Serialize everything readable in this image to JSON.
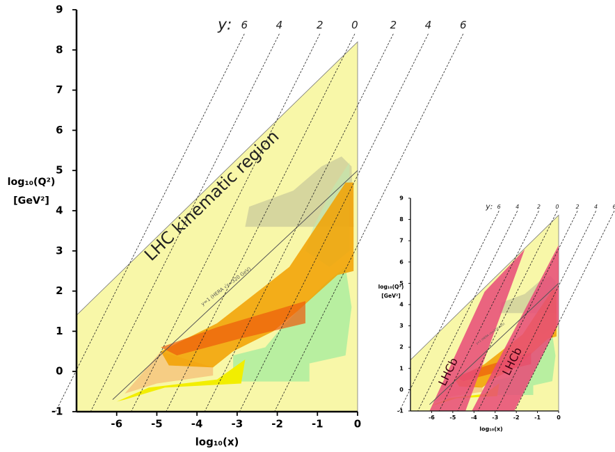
{
  "chart_data": [
    {
      "type": "region",
      "xlim": [
        -7,
        0
      ],
      "ylim": [
        -1,
        9
      ],
      "xticks": [
        -6,
        -5,
        -4,
        -3,
        -2,
        -1,
        0
      ],
      "yticks": [
        -1,
        0,
        1,
        2,
        3,
        4,
        5,
        6,
        7,
        8,
        9
      ],
      "xlabel": "log₁₀(x)",
      "ylabel": "log₁₀(Q²)",
      "ylabel_unit": "[GeV²]",
      "rapidity_prefix": "y:",
      "annotations": [
        "LHC kinematic region",
        "y=1 (HERA √s=320 GeV)"
      ],
      "regions": [
        {
          "color": "#f8f7a8",
          "opacity": 1,
          "x": [
            -7,
            0,
            0,
            -7
          ],
          "y": [
            1.4,
            8.2,
            -1,
            -1
          ]
        },
        {
          "color": "#c8c89a",
          "opacity": 0.7,
          "x": [
            -2.8,
            -2.7,
            -1.6,
            -0.9,
            -0.4,
            -0.15,
            -0.1,
            -2.8
          ],
          "y": [
            3.6,
            4.1,
            4.5,
            5.1,
            5.35,
            5.1,
            3.6,
            3.6
          ]
        },
        {
          "color": "#bfe8b0",
          "opacity": 0.6,
          "x": [
            -1.1,
            -0.6,
            -0.2,
            -0.2,
            -0.7,
            -1.3
          ],
          "y": [
            3.6,
            4.6,
            5.2,
            3.0,
            2.6,
            3.0
          ]
        },
        {
          "color": "#a8ec9e",
          "opacity": 0.8,
          "x": [
            -3.1,
            -3.1,
            -2.3,
            -1.8,
            -0.8,
            -0.3,
            -0.15,
            -0.3,
            -1.2,
            -1.2
          ],
          "y": [
            -0.25,
            0.4,
            0.6,
            1.2,
            2.2,
            2.6,
            1.6,
            0.4,
            0.2,
            -0.25
          ]
        },
        {
          "color": "#f5c27a",
          "opacity": 0.8,
          "x": [
            -5.8,
            -4.9,
            -3.6,
            -3.6,
            -5.0
          ],
          "y": [
            -0.55,
            0.5,
            0.1,
            -0.1,
            -0.3
          ]
        },
        {
          "color": "#f2ee00",
          "opacity": 1,
          "x": [
            -6.0,
            -5.2,
            -3.5,
            -2.8,
            -2.9,
            -4.8,
            -5.8
          ],
          "y": [
            -0.75,
            -0.4,
            -0.2,
            0.3,
            -0.3,
            -0.4,
            -0.7
          ]
        },
        {
          "color": "#f2a000",
          "opacity": 0.85,
          "x": [
            -4.9,
            -3.5,
            -1.7,
            -0.3,
            -0.1,
            -0.1,
            -0.5,
            -1.5,
            -2.1,
            -3.1,
            -3.6,
            -4.7
          ],
          "y": [
            0.5,
            1.2,
            2.6,
            4.7,
            4.7,
            2.5,
            2.4,
            1.5,
            1.0,
            0.5,
            0.1,
            0.15
          ]
        },
        {
          "color": "#ec5a0c",
          "opacity": 0.7,
          "x": [
            -4.9,
            -3.5,
            -1.3,
            -1.3,
            -3.0,
            -4.5
          ],
          "y": [
            0.6,
            1.1,
            1.75,
            1.2,
            0.8,
            0.4
          ]
        }
      ],
      "boundary": {
        "x": [
          -6.1,
          0
        ],
        "y": [
          -0.7,
          5.0
        ]
      },
      "rapidity_lines": [
        {
          "label": 6,
          "x": [
            -2.82,
            -7.52
          ],
          "y": [
            8.4,
            -1
          ]
        },
        {
          "label": 4,
          "x": [
            -1.95,
            -6.65
          ],
          "y": [
            8.4,
            -1
          ]
        },
        {
          "label": 2,
          "x": [
            -0.94,
            -5.64
          ],
          "y": [
            8.4,
            -1
          ]
        },
        {
          "label": 0,
          "x": [
            -0.07,
            -4.77
          ],
          "y": [
            8.4,
            -1
          ]
        },
        {
          "label": 2,
          "x": [
            0.89,
            -3.81
          ],
          "y": [
            8.4,
            -1
          ]
        },
        {
          "label": 4,
          "x": [
            1.76,
            -2.94
          ],
          "y": [
            8.4,
            -1
          ]
        },
        {
          "label": 6,
          "x": [
            2.63,
            -2.07
          ],
          "y": [
            8.4,
            -1
          ]
        }
      ]
    },
    {
      "type": "region",
      "xlim": [
        -7,
        0
      ],
      "ylim": [
        -1,
        9
      ],
      "xticks": [
        -6,
        -5,
        -4,
        -3,
        -2,
        -1,
        0
      ],
      "yticks": [
        -1,
        0,
        1,
        2,
        3,
        4,
        5,
        6,
        7,
        8,
        9
      ],
      "xlabel": "log₁₀(x)",
      "ylabel": "log₁₀(Q²)",
      "ylabel_unit": "[GeV²]",
      "rapidity_prefix": "y:",
      "annotations": [
        "LHCb",
        "LHCb",
        "y=1 (HERA √s=320 GeV)"
      ],
      "regions": [
        {
          "color": "#f8f7a8",
          "opacity": 1,
          "x": [
            -7,
            0,
            0,
            -7
          ],
          "y": [
            1.4,
            8.2,
            -1,
            -1
          ]
        },
        {
          "color": "#c8c89a",
          "opacity": 0.7,
          "x": [
            -2.8,
            -2.7,
            -1.6,
            -0.9,
            -0.4,
            -0.15,
            -0.1,
            -2.8
          ],
          "y": [
            3.6,
            4.1,
            4.5,
            5.1,
            5.35,
            5.1,
            3.6,
            3.6
          ]
        },
        {
          "color": "#bfe8b0",
          "opacity": 0.6,
          "x": [
            -1.1,
            -0.6,
            -0.2,
            -0.2,
            -0.7,
            -1.3
          ],
          "y": [
            3.6,
            4.6,
            5.2,
            3.0,
            2.6,
            3.0
          ]
        },
        {
          "color": "#a8ec9e",
          "opacity": 0.8,
          "x": [
            -3.1,
            -3.1,
            -2.3,
            -1.8,
            -0.8,
            -0.3,
            -0.15,
            -0.3,
            -1.2,
            -1.2
          ],
          "y": [
            -0.25,
            0.4,
            0.6,
            1.2,
            2.2,
            2.6,
            1.6,
            0.4,
            0.2,
            -0.25
          ]
        },
        {
          "color": "#f5c27a",
          "opacity": 0.8,
          "x": [
            -5.8,
            -4.9,
            -3.6,
            -3.6,
            -5.0
          ],
          "y": [
            -0.55,
            0.5,
            0.1,
            -0.1,
            -0.3
          ]
        },
        {
          "color": "#f2ee00",
          "opacity": 1,
          "x": [
            -6.0,
            -5.2,
            -3.5,
            -2.8,
            -2.9,
            -4.8,
            -5.8
          ],
          "y": [
            -0.75,
            -0.4,
            -0.2,
            0.3,
            -0.3,
            -0.4,
            -0.7
          ]
        },
        {
          "color": "#f2a000",
          "opacity": 0.85,
          "x": [
            -4.9,
            -3.5,
            -1.7,
            -0.3,
            -0.1,
            -0.1,
            -0.5,
            -1.5,
            -2.1,
            -3.1,
            -3.6,
            -4.7
          ],
          "y": [
            0.5,
            1.2,
            2.6,
            4.7,
            4.7,
            2.5,
            2.4,
            1.5,
            1.0,
            0.5,
            0.1,
            0.15
          ]
        },
        {
          "color": "#ec5a0c",
          "opacity": 0.7,
          "x": [
            -4.9,
            -3.5,
            -1.3,
            -1.3,
            -3.0,
            -4.5
          ],
          "y": [
            0.6,
            1.1,
            1.75,
            1.2,
            0.8,
            0.4
          ]
        },
        {
          "color": "#e84a78",
          "opacity": 0.85,
          "x": [
            -6.1,
            -4.4,
            -1.6,
            -3.5
          ],
          "y": [
            -1,
            -1,
            6.6,
            4.6
          ]
        },
        {
          "color": "#e84a78",
          "opacity": 0.85,
          "x": [
            -4.1,
            -2.1,
            0,
            0
          ],
          "y": [
            -1,
            -1,
            3.1,
            6.8
          ]
        }
      ],
      "boundary": {
        "x": [
          -6.1,
          0
        ],
        "y": [
          -0.7,
          5.0
        ]
      },
      "rapidity_lines": [
        {
          "label": 6,
          "x": [
            -2.82,
            -7.52
          ],
          "y": [
            8.4,
            -1
          ]
        },
        {
          "label": 4,
          "x": [
            -1.95,
            -6.65
          ],
          "y": [
            8.4,
            -1
          ]
        },
        {
          "label": 2,
          "x": [
            -0.94,
            -5.64
          ],
          "y": [
            8.4,
            -1
          ]
        },
        {
          "label": 0,
          "x": [
            -0.07,
            -4.77
          ],
          "y": [
            8.4,
            -1
          ]
        },
        {
          "label": 2,
          "x": [
            0.89,
            -3.81
          ],
          "y": [
            8.4,
            -1
          ]
        },
        {
          "label": 4,
          "x": [
            1.76,
            -2.94
          ],
          "y": [
            8.4,
            -1
          ]
        },
        {
          "label": 6,
          "x": [
            2.63,
            -2.07
          ],
          "y": [
            8.4,
            -1
          ]
        }
      ]
    }
  ]
}
